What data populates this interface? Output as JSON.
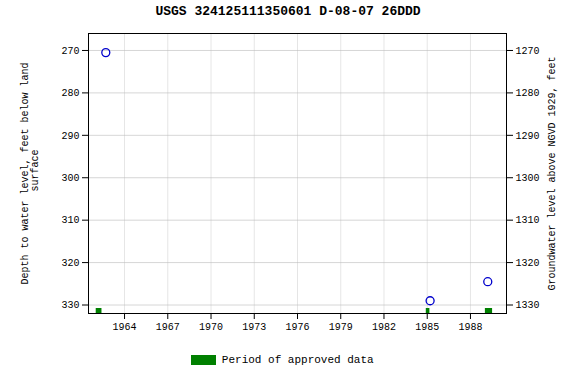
{
  "chart_data": {
    "type": "scatter",
    "title": "USGS 324125111350601 D-08-07 26DDD",
    "ylabel": "Depth to water level, feet below land\n surface",
    "y2label": "Groundwater level above NGVD 1929, feet",
    "xlim": [
      1961.5,
      1990.5
    ],
    "xticks": [
      1964,
      1967,
      1970,
      1973,
      1976,
      1979,
      1982,
      1985,
      1988
    ],
    "ylim": [
      332,
      266
    ],
    "yticks": [
      270,
      280,
      290,
      300,
      310,
      320,
      330
    ],
    "y2lim": [
      1332,
      1266
    ],
    "y2ticks": [
      1270,
      1280,
      1290,
      1300,
      1310,
      1320,
      1330
    ],
    "x": [
      1962.7,
      1985.2,
      1989.2
    ],
    "values": [
      270.5,
      329.0,
      324.5
    ],
    "color": "#0000cc",
    "marker": "circle",
    "grid": true,
    "approved_periods": [
      {
        "x_start": 1962.0,
        "x_end": 1962.4
      },
      {
        "x_start": 1984.9,
        "x_end": 1985.15
      },
      {
        "x_start": 1989.0,
        "x_end": 1989.5
      }
    ],
    "approved_label": "Period of approved data",
    "approved_color": "#008000"
  }
}
